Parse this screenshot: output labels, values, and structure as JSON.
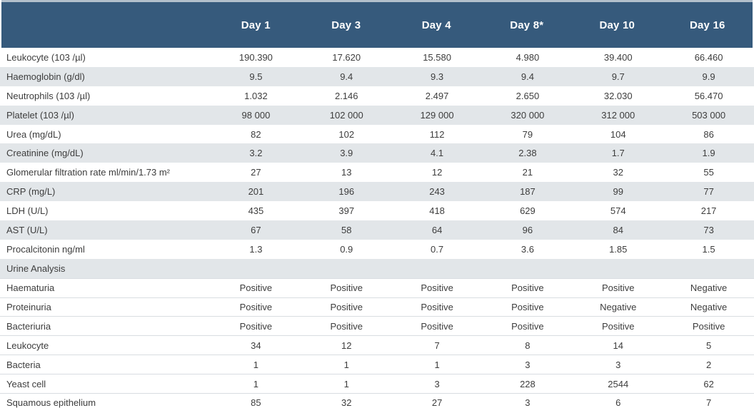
{
  "chart_data": {
    "type": "table",
    "columns": [
      "Day 1",
      "Day 3",
      "Day 4",
      "Day 8*",
      "Day 10",
      "Day 16"
    ],
    "rows": [
      {
        "label": "Leukocyte (103 /µl)",
        "values": [
          "190.390",
          "17.620",
          "15.580",
          "4.980",
          "39.400",
          "66.460"
        ]
      },
      {
        "label": "Haemoglobin (g/dl)",
        "values": [
          "9.5",
          "9.4",
          "9.3",
          "9.4",
          "9.7",
          "9.9"
        ]
      },
      {
        "label": "Neutrophils (103 /µl)",
        "values": [
          "1.032",
          "2.146",
          "2.497",
          "2.650",
          "32.030",
          "56.470"
        ]
      },
      {
        "label": "Platelet (103 /µl)",
        "values": [
          "98 000",
          "102 000",
          "129 000",
          "320 000",
          "312 000",
          "503 000"
        ]
      },
      {
        "label": "Urea (mg/dL)",
        "values": [
          "82",
          "102",
          "112",
          "79",
          "104",
          "86"
        ]
      },
      {
        "label": "Creatinine (mg/dL)",
        "values": [
          "3.2",
          "3.9",
          "4.1",
          "2.38",
          "1.7",
          "1.9"
        ]
      },
      {
        "label": "Glomerular filtration rate ml/min/1.73 m²",
        "values": [
          "27",
          "13",
          "12",
          "21",
          "32",
          "55"
        ]
      },
      {
        "label": "CRP (mg/L)",
        "values": [
          "201",
          "196",
          "243",
          "187",
          "99",
          "77"
        ]
      },
      {
        "label": "LDH (U/L)",
        "values": [
          "435",
          "397",
          "418",
          "629",
          "574",
          "217"
        ]
      },
      {
        "label": "AST (U/L)",
        "values": [
          "67",
          "58",
          "64",
          "96",
          "84",
          "73"
        ]
      },
      {
        "label": "Procalcitonin ng/ml",
        "values": [
          "1.3",
          "0.9",
          "0.7",
          "3.6",
          "1.85",
          "1.5"
        ]
      },
      {
        "label": "Urine Analysis",
        "section": true,
        "values": []
      },
      {
        "label": "Haematuria",
        "values": [
          "Positive",
          "Positive",
          "Positive",
          "Positive",
          "Positive",
          "Negative"
        ]
      },
      {
        "label": "Proteinuria",
        "values": [
          "Positive",
          "Positive",
          "Positive",
          "Positive",
          "Negative",
          "Negative"
        ]
      },
      {
        "label": "Bacteriuria",
        "values": [
          "Positive",
          "Positive",
          "Positive",
          "Positive",
          "Positive",
          "Positive"
        ]
      },
      {
        "label": "Leukocyte",
        "values": [
          "34",
          "12",
          "7",
          "8",
          "14",
          "5"
        ]
      },
      {
        "label": "Bacteria",
        "values": [
          "1",
          "1",
          "1",
          "3",
          "3",
          "2"
        ]
      },
      {
        "label": "Yeast cell",
        "values": [
          "1",
          "1",
          "3",
          "228",
          "2544",
          "62"
        ]
      },
      {
        "label": "Squamous epithelium",
        "values": [
          "85",
          "32",
          "27",
          "3",
          "6",
          "7"
        ]
      }
    ]
  },
  "colors": {
    "header_bg": "#365a7c",
    "header_text": "#ffffff",
    "stripe": "#e2e6e9",
    "row_border": "#d9dde1",
    "body_text": "#3d3d3d",
    "top_accent": "#b3c0cc"
  }
}
